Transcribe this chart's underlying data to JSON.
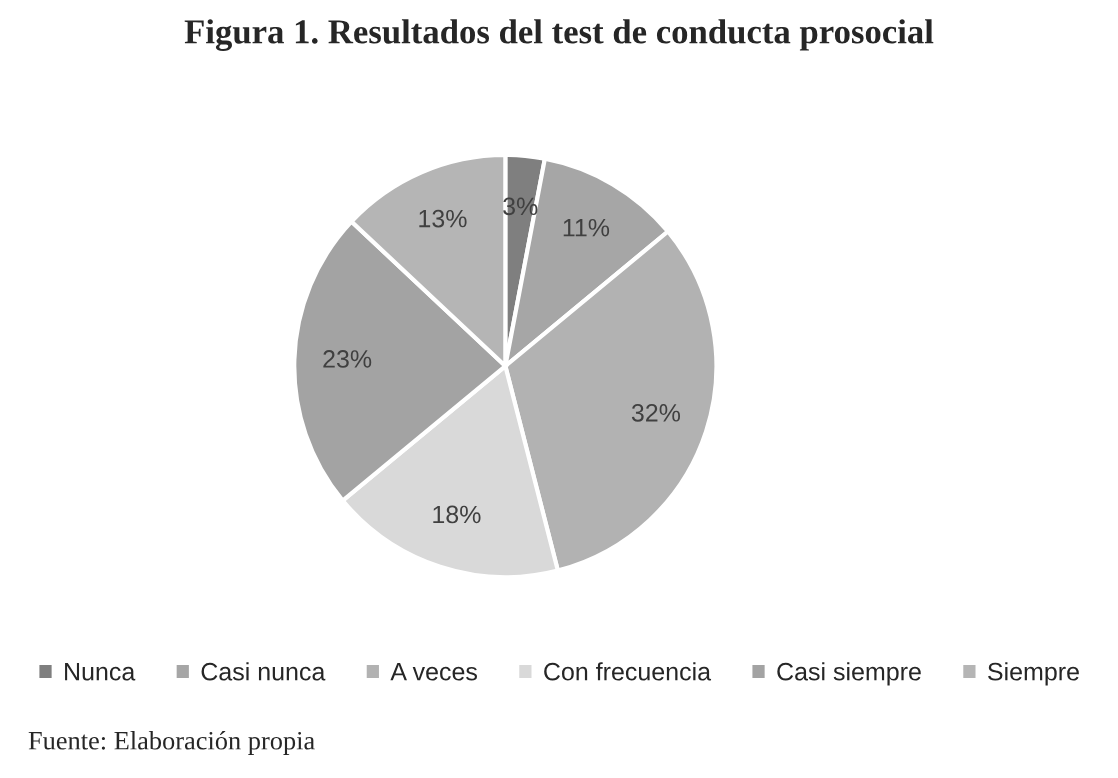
{
  "chart_data": {
    "type": "pie",
    "title": "Figura 1. Resultados del test de conducta prosocial",
    "categories": [
      "Nunca",
      "Casi nunca",
      "A veces",
      "Con frecuencia",
      "Casi siempre",
      "Siempre"
    ],
    "values": [
      3,
      11,
      32,
      18,
      23,
      13
    ],
    "value_labels": [
      "3%",
      "11%",
      "32%",
      "18%",
      "23%",
      "13%"
    ],
    "colors": [
      "#7f7f7f",
      "#a6a6a6",
      "#b2b2b2",
      "#d9d9d9",
      "#a3a3a3",
      "#b5b5b5"
    ],
    "legend": "bottom",
    "annotations": [
      "Fuente: Elaboración propia"
    ]
  }
}
